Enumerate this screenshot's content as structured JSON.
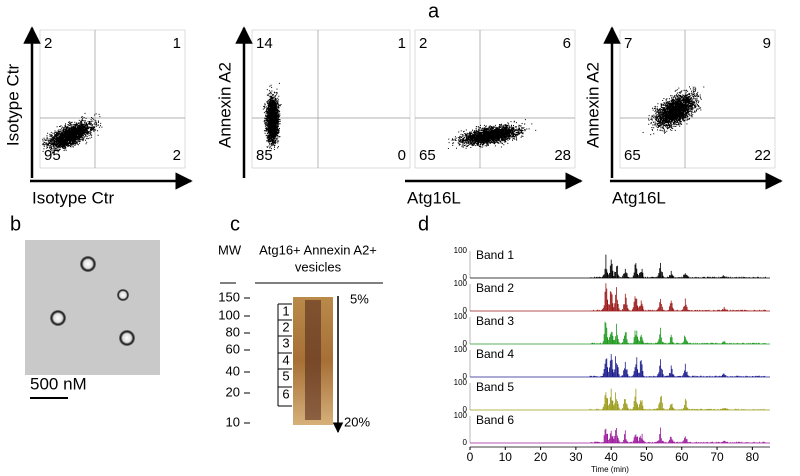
{
  "panel_labels": [
    "a",
    "b",
    "c",
    "d"
  ],
  "panel_a": {
    "plots": [
      {
        "x_label": "Isotype Ctr",
        "y_label": "Isotype Ctr",
        "quadrants": [
          2,
          1,
          95,
          2
        ]
      },
      {
        "y_label": "Annexin A2",
        "quadrants": [
          14,
          1,
          85,
          0
        ]
      },
      {
        "x_label": "Atg16L",
        "quadrants": [
          2,
          6,
          65,
          28
        ]
      },
      {
        "x_label": "Atg16L",
        "y_label": "Annexin A2",
        "quadrants": [
          7,
          9,
          65,
          22
        ]
      }
    ]
  },
  "panel_b": {
    "scale_bar": "500 nM"
  },
  "panel_c": {
    "mw_header": "MW",
    "lane_header": [
      "Atg16+ Annexin A2+",
      "vesicles"
    ],
    "mw_markers": [
      150,
      100,
      80,
      60,
      40,
      20,
      10
    ],
    "bands": [
      "1",
      "2",
      "3",
      "4",
      "5",
      "6"
    ],
    "gradient_top": "5%",
    "gradient_bottom": "20%"
  },
  "panel_d": {
    "traces": [
      {
        "name": "Band 1",
        "color": "#000000"
      },
      {
        "name": "Band 2",
        "color": "#9b1b1b"
      },
      {
        "name": "Band 3",
        "color": "#1f9a1f"
      },
      {
        "name": "Band 4",
        "color": "#1c1c8c"
      },
      {
        "name": "Band 5",
        "color": "#9c9c1c"
      },
      {
        "name": "Band 6",
        "color": "#9c1c9c"
      }
    ],
    "ylim": [
      0,
      100
    ],
    "yticks": [
      0,
      100
    ],
    "xlim": [
      0,
      85
    ],
    "xticks": [
      0,
      10,
      20,
      30,
      40,
      50,
      60,
      70,
      80
    ],
    "x_label": "Time (min)"
  }
}
